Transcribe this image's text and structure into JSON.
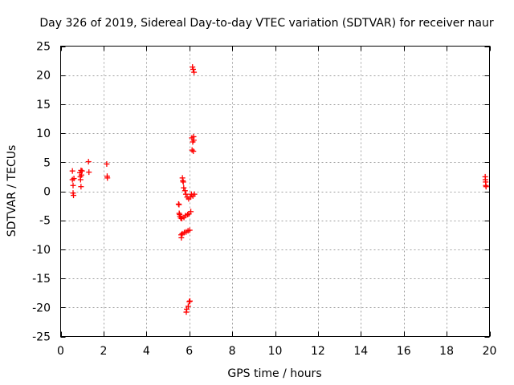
{
  "chart_data": {
    "type": "scatter",
    "title": "Day 326 of 2019, Sidereal Day-to-day VTEC variation (SDTVAR) for receiver naur",
    "xlabel": "GPS time / hours",
    "ylabel": "SDTVAR / TECUs",
    "xlim": [
      0,
      20
    ],
    "ylim": [
      -25,
      25
    ],
    "xticks": [
      0,
      2,
      4,
      6,
      8,
      10,
      12,
      14,
      16,
      18,
      20
    ],
    "yticks": [
      25,
      20,
      15,
      10,
      5,
      0,
      -5,
      -10,
      -15,
      -20,
      -25
    ],
    "grid": true,
    "marker": "+",
    "series": [
      {
        "name": "SDTVAR",
        "color": "#ff0000",
        "points": [
          [
            0.55,
            3.5
          ],
          [
            0.55,
            2.0
          ],
          [
            0.58,
            1.0
          ],
          [
            0.58,
            -0.3
          ],
          [
            0.6,
            -0.7
          ],
          [
            0.62,
            2.2
          ],
          [
            0.9,
            3.2
          ],
          [
            0.92,
            2.5
          ],
          [
            0.93,
            2.0
          ],
          [
            0.95,
            3.6
          ],
          [
            0.95,
            0.8
          ],
          [
            0.97,
            2.8
          ],
          [
            1.0,
            3.5
          ],
          [
            1.3,
            5.1
          ],
          [
            1.32,
            3.3
          ],
          [
            2.15,
            4.7
          ],
          [
            2.17,
            2.6
          ],
          [
            2.18,
            2.3
          ],
          [
            5.5,
            -2.2
          ],
          [
            5.52,
            -2.3
          ],
          [
            5.53,
            -3.8
          ],
          [
            5.55,
            -4.0
          ],
          [
            5.57,
            -4.3
          ],
          [
            5.6,
            -4.6
          ],
          [
            5.62,
            -7.5
          ],
          [
            5.63,
            -8.0
          ],
          [
            5.65,
            -4.7
          ],
          [
            5.67,
            -7.3
          ],
          [
            5.68,
            2.3
          ],
          [
            5.7,
            1.8
          ],
          [
            5.72,
            1.6
          ],
          [
            5.74,
            0.6
          ],
          [
            5.75,
            -4.5
          ],
          [
            5.77,
            -7.1
          ],
          [
            5.8,
            0.1
          ],
          [
            5.82,
            -4.2
          ],
          [
            5.84,
            -0.5
          ],
          [
            5.85,
            -7.0
          ],
          [
            5.86,
            -20.8
          ],
          [
            5.88,
            -20.3
          ],
          [
            5.9,
            -1.0
          ],
          [
            5.92,
            -4.0
          ],
          [
            5.94,
            -6.8
          ],
          [
            5.95,
            -19.8
          ],
          [
            5.97,
            -1.3
          ],
          [
            5.98,
            -3.9
          ],
          [
            6.0,
            -19.0
          ],
          [
            6.02,
            -6.7
          ],
          [
            6.03,
            -18.9
          ],
          [
            6.05,
            -1.0
          ],
          [
            6.07,
            -3.5
          ],
          [
            6.1,
            -0.5
          ],
          [
            6.12,
            9.2
          ],
          [
            6.13,
            7.1
          ],
          [
            6.15,
            21.4
          ],
          [
            6.16,
            8.5
          ],
          [
            6.17,
            -0.8
          ],
          [
            6.18,
            21.0
          ],
          [
            6.19,
            6.9
          ],
          [
            6.2,
            9.4
          ],
          [
            6.21,
            8.8
          ],
          [
            6.22,
            20.5
          ],
          [
            6.24,
            -0.5
          ],
          [
            19.8,
            2.5
          ],
          [
            19.81,
            2.0
          ],
          [
            19.82,
            1.6
          ],
          [
            19.83,
            1.0
          ],
          [
            19.84,
            0.8
          ]
        ]
      }
    ]
  }
}
